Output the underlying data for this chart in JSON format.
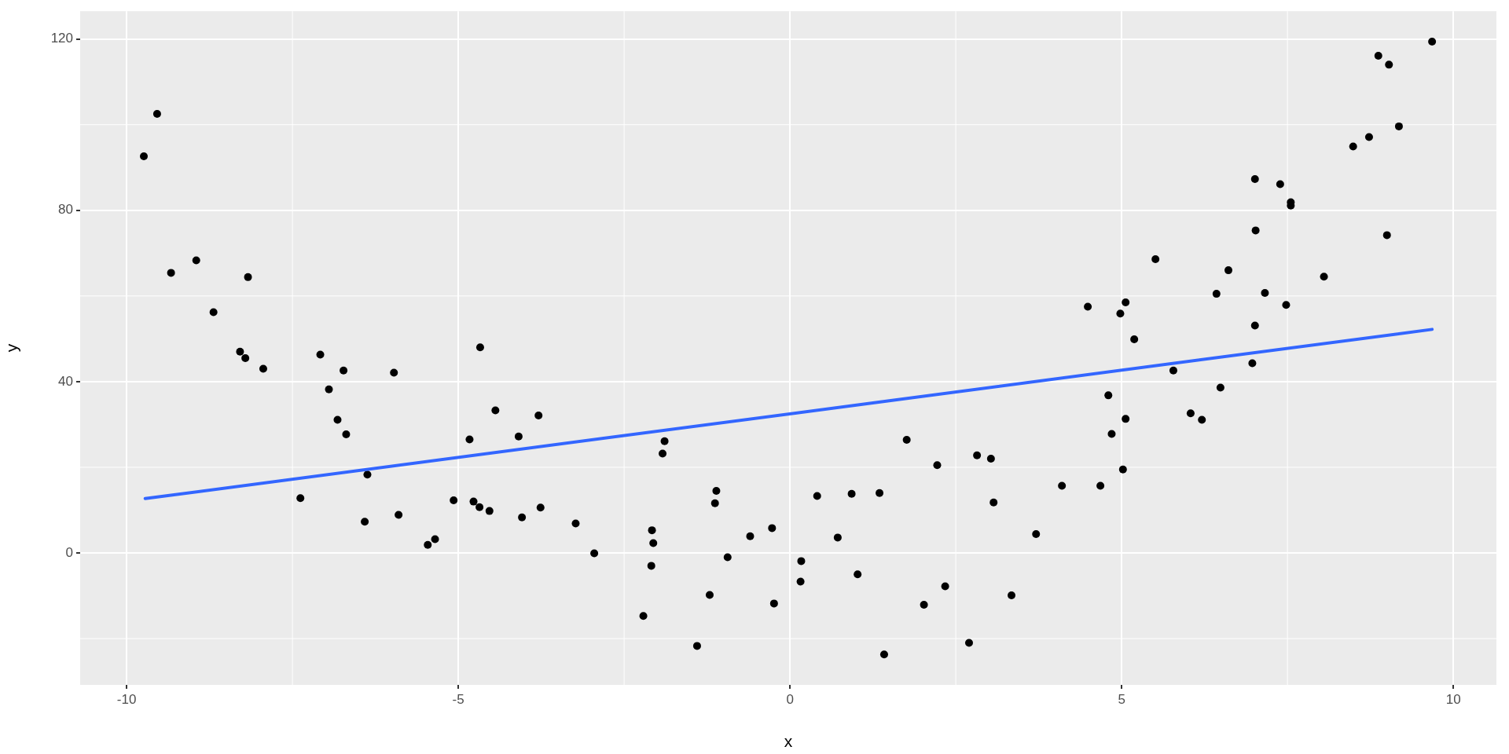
{
  "chart_data": {
    "type": "scatter",
    "xlabel": "x",
    "ylabel": "y",
    "xlim": [
      -10.7,
      10.65
    ],
    "ylim": [
      -30.8,
      126.5
    ],
    "xticks": [
      -10,
      -5,
      0,
      5,
      10
    ],
    "yticks": [
      0,
      40,
      80,
      120
    ],
    "grid": true,
    "series": [
      {
        "color": "#000000",
        "marker": "circle",
        "x": [
          -9.54,
          -9.74,
          -9.33,
          -8.95,
          -8.17,
          -8.69,
          -8.29,
          -8.21,
          -7.94,
          -7.08,
          -6.73,
          -5.97,
          -4.67,
          -6.95,
          -6.82,
          -6.69,
          -6.37,
          -7.38,
          -6.41,
          -5.9,
          -5.46,
          -5.35,
          -5.07,
          -4.83,
          -4.77,
          -4.68,
          -4.53,
          -4.44,
          -4.09,
          -4.04,
          -3.79,
          -3.76,
          -3.23,
          -2.95,
          -1.89,
          -1.92,
          -2.08,
          -2.06,
          -2.09,
          -2.21,
          -1.4,
          -1.21,
          -1.11,
          -1.13,
          -0.94,
          -0.6,
          -0.27,
          -0.24,
          0.17,
          0.16,
          0.41,
          0.72,
          0.93,
          1.02,
          1.35,
          1.42,
          1.76,
          2.02,
          2.22,
          2.34,
          2.7,
          2.82,
          3.03,
          3.07,
          3.34,
          3.71,
          4.1,
          4.68,
          5.02,
          4.85,
          5.06,
          4.8,
          5.78,
          6.04,
          6.21,
          6.49,
          6.97,
          4.49,
          4.98,
          5.06,
          5.19,
          5.51,
          6.43,
          6.61,
          7.01,
          7.02,
          7.16,
          7.01,
          7.39,
          7.48,
          7.55,
          7.55,
          8.05,
          8.49,
          8.73,
          8.87,
          9.03,
          9.18,
          9.0,
          9.68
        ],
        "values": [
          102.5,
          92.6,
          65.4,
          68.3,
          64.4,
          56.2,
          47.0,
          45.5,
          43.0,
          46.3,
          42.6,
          42.1,
          48.0,
          38.2,
          31.1,
          27.7,
          18.3,
          12.8,
          7.3,
          8.9,
          1.9,
          3.2,
          12.3,
          26.5,
          12.0,
          10.7,
          9.8,
          33.3,
          27.2,
          8.3,
          32.1,
          10.6,
          6.9,
          -0.1,
          26.1,
          23.2,
          5.3,
          2.3,
          -3.0,
          -14.7,
          -21.7,
          -9.8,
          14.5,
          11.6,
          -1.0,
          3.9,
          5.8,
          -11.8,
          -1.9,
          -6.7,
          13.3,
          3.6,
          13.8,
          -5.0,
          14.0,
          -23.7,
          26.4,
          -12.1,
          20.5,
          -7.8,
          -21.0,
          22.8,
          22.0,
          11.8,
          -9.9,
          4.4,
          15.7,
          15.7,
          19.5,
          27.8,
          31.3,
          36.8,
          42.6,
          32.6,
          31.1,
          38.6,
          44.3,
          57.5,
          55.9,
          58.5,
          49.9,
          68.6,
          60.5,
          66.0,
          87.3,
          75.3,
          60.7,
          53.1,
          86.1,
          57.9,
          81.9,
          81.1,
          64.5,
          94.9,
          97.1,
          116.1,
          114.0,
          99.6,
          74.2,
          119.4
        ]
      },
      {
        "type": "line",
        "color": "#3366ff",
        "x": [
          -9.72,
          9.68
        ],
        "values": [
          12.7,
          52.2
        ]
      }
    ]
  }
}
